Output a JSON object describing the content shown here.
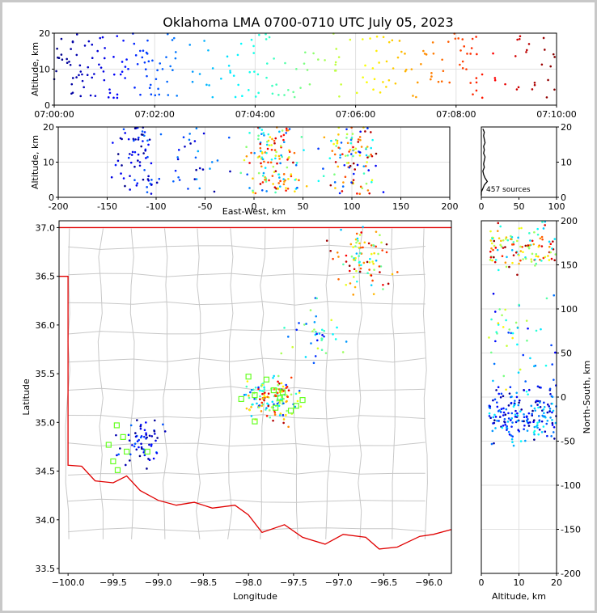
{
  "chart_data": [
    {
      "id": "time-height",
      "type": "scatter",
      "title": "Oklahoma LMA 0700-0710 UTC July 05, 2023",
      "xlabel": "",
      "ylabel": "Altitude, km",
      "xlim": [
        0,
        600
      ],
      "ylim": [
        0,
        20
      ],
      "xticks": [
        {
          "v": 0,
          "label": "07:00:00"
        },
        {
          "v": 120,
          "label": "07:02:00"
        },
        {
          "v": 240,
          "label": "07:04:00"
        },
        {
          "v": 360,
          "label": "07:06:00"
        },
        {
          "v": 480,
          "label": "07:08:00"
        },
        {
          "v": 600,
          "label": "07:10:00"
        }
      ],
      "yticks": [
        0,
        10,
        20
      ],
      "grid": true,
      "color_by": "time"
    },
    {
      "id": "east-west-altitude",
      "type": "scatter",
      "xlabel": "East-West, km",
      "ylabel": "Altitude, km",
      "xlim": [
        -200,
        200
      ],
      "ylim": [
        0,
        20
      ],
      "xticks": [
        -200,
        -150,
        -100,
        -50,
        0,
        50,
        100,
        150,
        200
      ],
      "yticks": [
        0,
        10,
        20
      ],
      "grid": true,
      "color_by": "time"
    },
    {
      "id": "altitude-histogram",
      "type": "line",
      "xlim": [
        0,
        100
      ],
      "ylim": [
        0,
        20
      ],
      "xticks": [
        0,
        50,
        100
      ],
      "yticks": [
        0,
        10,
        20
      ],
      "annotation": "457 sources",
      "bins": [
        {
          "alt": 0.5,
          "count": 0
        },
        {
          "alt": 1.5,
          "count": 0
        },
        {
          "alt": 2.5,
          "count": 2
        },
        {
          "alt": 3.5,
          "count": 4
        },
        {
          "alt": 4.5,
          "count": 8
        },
        {
          "alt": 5.5,
          "count": 5
        },
        {
          "alt": 6.5,
          "count": 3
        },
        {
          "alt": 7.5,
          "count": 2
        },
        {
          "alt": 8.5,
          "count": 4
        },
        {
          "alt": 9.5,
          "count": 3
        },
        {
          "alt": 10.5,
          "count": 4
        },
        {
          "alt": 11.5,
          "count": 5
        },
        {
          "alt": 12.5,
          "count": 3
        },
        {
          "alt": 13.5,
          "count": 4
        },
        {
          "alt": 14.5,
          "count": 3
        },
        {
          "alt": 15.5,
          "count": 5
        },
        {
          "alt": 16.5,
          "count": 4
        },
        {
          "alt": 17.5,
          "count": 3
        },
        {
          "alt": 18.5,
          "count": 4
        },
        {
          "alt": 19.5,
          "count": 2
        }
      ]
    },
    {
      "id": "plan-view-map",
      "type": "scatter",
      "xlabel": "Longitude",
      "ylabel": "Latitude",
      "xlim": [
        -100.1,
        -95.75
      ],
      "ylim": [
        33.45,
        37.07
      ],
      "xticks": [
        -100.0,
        -99.5,
        -99.0,
        -98.5,
        -98.0,
        -97.5,
        -97.0,
        -96.5,
        -96.0
      ],
      "xtick_labels": [
        "−100.0",
        "−99.5",
        "−99.0",
        "−98.5",
        "−98.0",
        "−97.5",
        "−97.0",
        "−96.5",
        "−96.0"
      ],
      "yticks": [
        33.5,
        34.0,
        34.5,
        35.0,
        35.5,
        36.0,
        36.5,
        37.0
      ],
      "stations": [
        [
          -99.46,
          34.97
        ],
        [
          -99.39,
          34.85
        ],
        [
          -99.35,
          34.7
        ],
        [
          -99.55,
          34.77
        ],
        [
          -99.5,
          34.6
        ],
        [
          -99.45,
          34.51
        ],
        [
          -99.12,
          34.7
        ],
        [
          -98.0,
          35.47
        ],
        [
          -97.8,
          35.44
        ],
        [
          -98.08,
          35.24
        ],
        [
          -97.93,
          35.28
        ],
        [
          -97.93,
          35.01
        ],
        [
          -97.65,
          35.25
        ],
        [
          -97.7,
          35.15
        ],
        [
          -97.53,
          35.12
        ],
        [
          -97.47,
          35.17
        ],
        [
          -97.4,
          35.23
        ],
        [
          -97.72,
          35.33
        ],
        [
          -97.62,
          35.31
        ]
      ],
      "color_by": "time"
    },
    {
      "id": "altitude-north-south",
      "type": "scatter",
      "xlabel": "Altitude, km",
      "ylabel": "North-South, km",
      "xlim": [
        0,
        20
      ],
      "ylim": [
        -200,
        200
      ],
      "xticks": [
        0,
        10,
        20
      ],
      "yticks": [
        -200,
        -150,
        -100,
        -50,
        0,
        50,
        100,
        150,
        200
      ],
      "grid": true,
      "color_by": "time"
    }
  ]
}
